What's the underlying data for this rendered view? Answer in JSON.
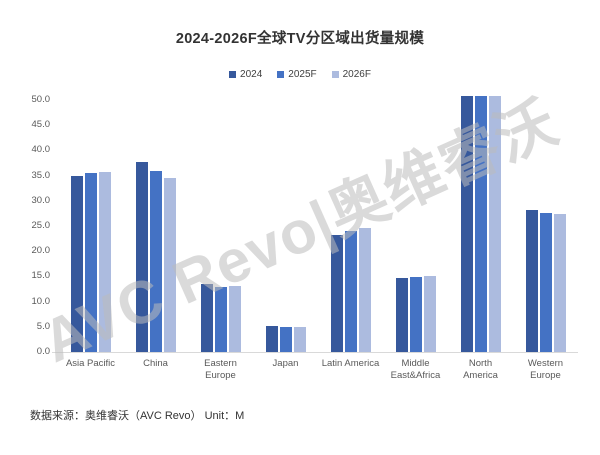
{
  "watermark": {
    "text": "AVC Revo|奥维睿沃"
  },
  "footer": {
    "source": "数据来源：奥维睿沃（AVC Revo） Unit：M"
  },
  "colors": {
    "series_2024": "#36589C",
    "series_2025F": "#4472C4",
    "series_2026F": "#ACBBDF",
    "axis_line": "#D9D9D9",
    "tick_text": "#595959",
    "title_text": "#333333",
    "watermark": "#BBBBBB"
  },
  "chart_data": {
    "type": "bar",
    "title": "2024-2026F全球TV分区域出货量规模",
    "unit": "M",
    "categories": [
      "Asia Pacific",
      "China",
      "Eastern Europe",
      "Japan",
      "Latin America",
      "Middle East&Africa",
      "North America",
      "Western Europe"
    ],
    "series": [
      {
        "name": "2024",
        "color": "#36589C",
        "values": [
          34.9,
          37.7,
          13.4,
          5.2,
          23.3,
          14.6,
          50.7,
          28.1
        ]
      },
      {
        "name": "2025F",
        "color": "#4472C4",
        "values": [
          35.6,
          36.0,
          12.9,
          5.0,
          24.0,
          14.8,
          50.7,
          27.6
        ]
      },
      {
        "name": "2026F",
        "color": "#ACBBDF",
        "values": [
          35.8,
          34.6,
          13.1,
          5.0,
          24.7,
          15.0,
          50.8,
          27.3
        ]
      }
    ],
    "ylim": [
      0,
      50
    ],
    "ytick_step": 5,
    "ytick_labels": [
      "0.0",
      "5.0",
      "10.0",
      "15.0",
      "20.0",
      "25.0",
      "30.0",
      "35.0",
      "40.0",
      "45.0",
      "50.0"
    ],
    "grid": false,
    "legend_position": "top",
    "xlabel": "",
    "ylabel": ""
  }
}
